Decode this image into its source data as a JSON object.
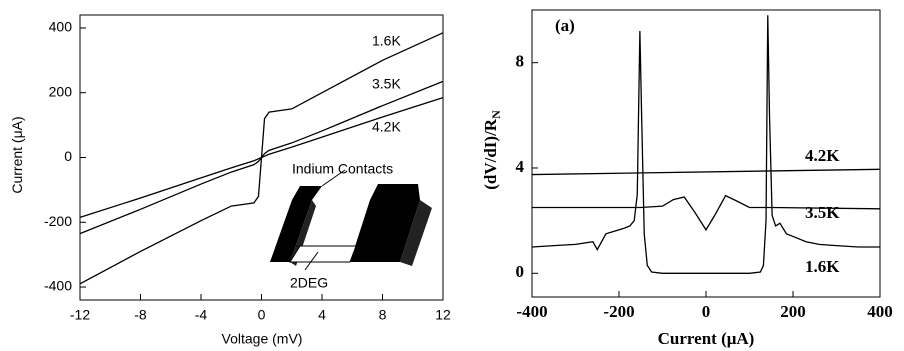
{
  "chart_data": [
    {
      "type": "line",
      "xlabel": "Voltage (mV)",
      "ylabel": "Current (μA)",
      "x": [
        -12,
        -8,
        -4,
        -2,
        -0.5,
        -0.2,
        0,
        0.2,
        0.5,
        2,
        4,
        8,
        12
      ],
      "series": [
        {
          "name": "1.6K",
          "color": "#000000",
          "values": [
            -390,
            -290,
            -195,
            -150,
            -140,
            -120,
            0,
            120,
            140,
            150,
            200,
            300,
            385
          ]
        },
        {
          "name": "3.5K",
          "color": "#000000",
          "values": [
            -235,
            -160,
            -82,
            -45,
            -22,
            -12,
            0,
            12,
            22,
            45,
            82,
            160,
            235
          ]
        },
        {
          "name": "4.2K",
          "color": "#000000",
          "values": [
            -185,
            -125,
            -63,
            -32,
            -10,
            -4,
            0,
            4,
            10,
            32,
            63,
            125,
            185
          ]
        }
      ],
      "xlim": [
        -12,
        12
      ],
      "xticks": [
        -12,
        -8,
        -4,
        0,
        4,
        8,
        12
      ],
      "ylim": [
        -440,
        440
      ],
      "yticks": [
        -400,
        -200,
        0,
        200,
        400
      ],
      "inset_labels": [
        "Indium Contacts",
        "2DEG"
      ]
    },
    {
      "type": "line",
      "title": "(a)",
      "xlabel": "Current (μA)",
      "ylabel": "(dV/dI)/R",
      "ylabel_sub": "N",
      "series": [
        {
          "name": "4.2K",
          "color": "#000000",
          "x": [
            -400,
            400
          ],
          "values": [
            3.75,
            3.95
          ]
        },
        {
          "name": "3.5K",
          "color": "#000000",
          "x": [
            -400,
            -150,
            -100,
            -75,
            -50,
            -25,
            0,
            20,
            45,
            70,
            100,
            150,
            400
          ],
          "values": [
            2.5,
            2.5,
            2.55,
            2.8,
            2.9,
            2.3,
            1.65,
            2.2,
            2.95,
            2.75,
            2.5,
            2.5,
            2.45
          ]
        },
        {
          "name": "1.6K",
          "color": "#000000",
          "x": [
            -400,
            -350,
            -300,
            -260,
            -250,
            -230,
            -210,
            -190,
            -175,
            -165,
            -158,
            -152,
            -148,
            -142,
            -135,
            -125,
            -100,
            0,
            100,
            125,
            132,
            138,
            142,
            146,
            152,
            160,
            170,
            185,
            200,
            230,
            260,
            300,
            350,
            400
          ],
          "values": [
            1.0,
            1.05,
            1.1,
            1.2,
            0.9,
            1.5,
            1.6,
            1.7,
            1.8,
            2.0,
            3,
            9.2,
            6,
            1.5,
            0.3,
            0.05,
            0,
            0,
            0,
            0.05,
            0.3,
            2,
            9.8,
            6,
            2.2,
            1.8,
            1.9,
            1.5,
            1.4,
            1.2,
            1.1,
            1.05,
            1.0,
            1.0
          ]
        }
      ],
      "xlim": [
        -400,
        400
      ],
      "xticks": [
        -400,
        -200,
        0,
        200,
        400
      ],
      "ylim": [
        -0.9,
        10
      ],
      "yticks": [
        0,
        4,
        8
      ]
    }
  ]
}
